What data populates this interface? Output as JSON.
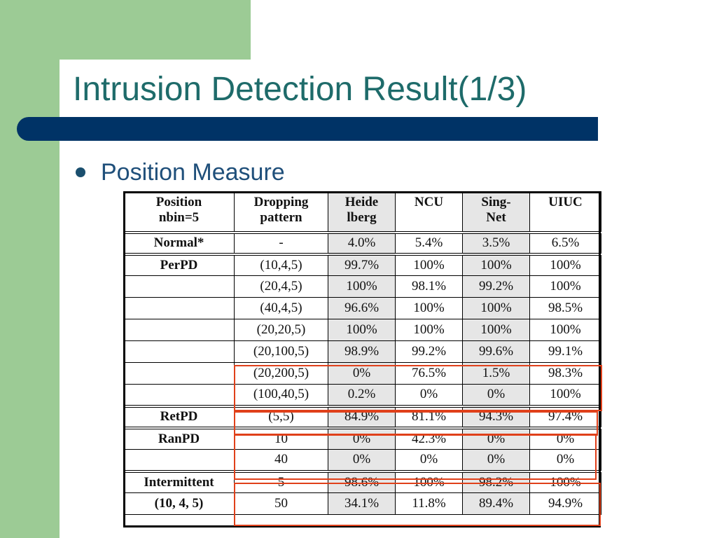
{
  "slide": {
    "title": "Intrusion Detection Result(1/3)",
    "bullet": "Position Measure"
  },
  "table": {
    "header": [
      [
        "Position",
        "nbin=5"
      ],
      [
        "Dropping",
        "pattern"
      ],
      [
        "Heide",
        "lberg"
      ],
      [
        "NCU",
        ""
      ],
      [
        "Sing-",
        "Net"
      ],
      [
        "UIUC",
        ""
      ]
    ],
    "rows": [
      [
        "Normal*",
        "-",
        "4.0%",
        "5.4%",
        "3.5%",
        "6.5%"
      ],
      [
        "PerPD",
        "(10,4,5)",
        "99.7%",
        "100%",
        "100%",
        "100%"
      ],
      [
        "",
        "(20,4,5)",
        "100%",
        "98.1%",
        "99.2%",
        "100%"
      ],
      [
        "",
        "(40,4,5)",
        "96.6%",
        "100%",
        "100%",
        "98.5%"
      ],
      [
        "",
        "(20,20,5)",
        "100%",
        "100%",
        "100%",
        "100%"
      ],
      [
        "",
        "(20,100,5)",
        "98.9%",
        "99.2%",
        "99.6%",
        "99.1%"
      ],
      [
        "",
        "(20,200,5)",
        "0%",
        "76.5%",
        "1.5%",
        "98.3%"
      ],
      [
        "",
        "(100,40,5)",
        "0.2%",
        "0%",
        "0%",
        "100%"
      ],
      [
        "RetPD",
        "(5,5)",
        "84.9%",
        "81.1%",
        "94.3%",
        "97.4%"
      ],
      [
        "RanPD",
        "10",
        "0%",
        "42.3%",
        "0%",
        "0%"
      ],
      [
        "",
        "40",
        "0%",
        "0%",
        "0%",
        "0%"
      ],
      [
        "Intermittent",
        "5",
        "98.6%",
        "100%",
        "98.2%",
        "100%"
      ],
      [
        "(10, 4, 5)",
        "50",
        "34.1%",
        "11.8%",
        "89.4%",
        "94.9%"
      ]
    ],
    "highlight_color": "#e0401a"
  }
}
